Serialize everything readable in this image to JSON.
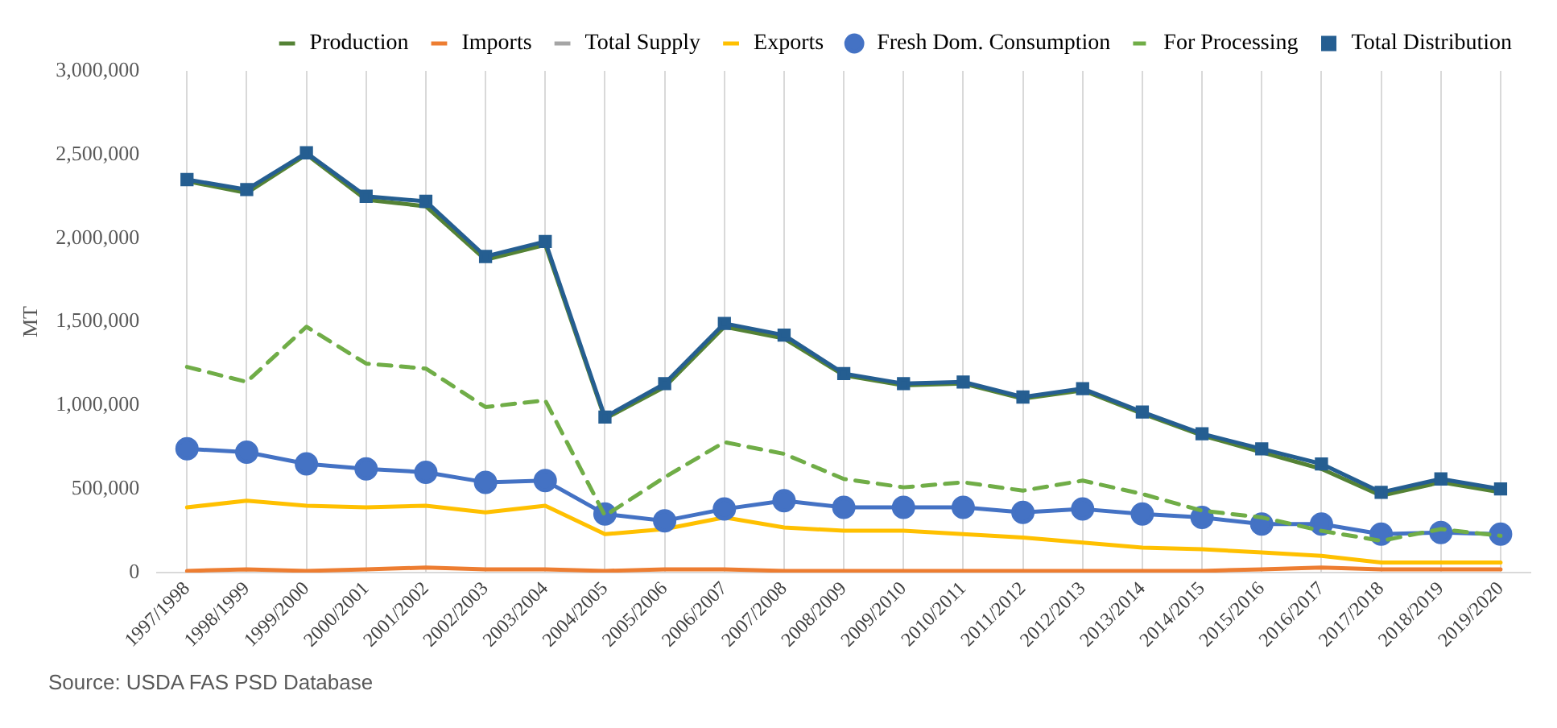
{
  "chart_data": {
    "type": "line",
    "ylabel": "MT",
    "annotations": [
      "Source: USDA FAS PSD Database"
    ],
    "categories": [
      "1997/1998",
      "1998/1999",
      "1999/2000",
      "2000/2001",
      "2001/2002",
      "2002/2003",
      "2003/2004",
      "2004/2005",
      "2005/2006",
      "2006/2007",
      "2007/2008",
      "2008/2009",
      "2009/2010",
      "2010/2011",
      "2011/2012",
      "2012/2013",
      "2013/2014",
      "2014/2015",
      "2015/2016",
      "2016/2017",
      "2017/2018",
      "2018/2019",
      "2019/2020"
    ],
    "ylim": [
      0,
      3000000
    ],
    "yticks": [
      0,
      {
        "value": 500000,
        "label": "500,000"
      },
      {
        "value": 1000000,
        "label": "1,000,000"
      },
      {
        "value": 1500000,
        "label": "1,500,000"
      },
      {
        "value": 2000000,
        "label": "2,000,000"
      },
      {
        "value": 2500000,
        "label": "2,500,000"
      },
      {
        "value": 3000000,
        "label": "3,000,000"
      }
    ],
    "grid": "x",
    "legend": "top right",
    "series": [
      {
        "name": "Production",
        "color": "#548235",
        "marker": "none",
        "line_style": "solid",
        "values": [
          2340000,
          2270000,
          2500000,
          2230000,
          2190000,
          1870000,
          1960000,
          920000,
          1110000,
          1470000,
          1400000,
          1180000,
          1120000,
          1130000,
          1040000,
          1090000,
          950000,
          820000,
          720000,
          620000,
          460000,
          540000,
          480000
        ]
      },
      {
        "name": "Imports",
        "color": "#ed7d31",
        "marker": "none",
        "line_style": "solid",
        "values": [
          10000,
          20000,
          10000,
          20000,
          30000,
          20000,
          20000,
          10000,
          20000,
          20000,
          10000,
          10000,
          10000,
          10000,
          10000,
          10000,
          10000,
          10000,
          20000,
          30000,
          20000,
          20000,
          20000
        ]
      },
      {
        "name": "Total Supply",
        "color": "#a5a5a5",
        "marker": "none",
        "line_style": "solid",
        "values": [
          null,
          null,
          null,
          null,
          null,
          null,
          null,
          null,
          null,
          null,
          null,
          null,
          null,
          null,
          null,
          null,
          null,
          null,
          null,
          null,
          null,
          null,
          null
        ]
      },
      {
        "name": "Exports",
        "color": "#ffc000",
        "marker": "none",
        "line_style": "solid",
        "values": [
          390000,
          430000,
          400000,
          390000,
          400000,
          360000,
          400000,
          230000,
          260000,
          330000,
          270000,
          250000,
          250000,
          230000,
          210000,
          180000,
          150000,
          140000,
          120000,
          100000,
          60000,
          60000,
          60000
        ]
      },
      {
        "name": "Fresh Dom. Consumption",
        "color": "#4472c4",
        "marker": "circle",
        "line_style": "solid",
        "values": [
          740000,
          720000,
          650000,
          620000,
          600000,
          540000,
          550000,
          350000,
          310000,
          380000,
          430000,
          390000,
          390000,
          390000,
          360000,
          380000,
          350000,
          330000,
          290000,
          290000,
          230000,
          240000,
          230000
        ]
      },
      {
        "name": "For Processing",
        "color": "#70ad47",
        "marker": "none",
        "line_style": "dashed",
        "values": [
          1230000,
          1140000,
          1470000,
          1250000,
          1220000,
          990000,
          1030000,
          340000,
          570000,
          780000,
          710000,
          560000,
          510000,
          540000,
          490000,
          550000,
          470000,
          370000,
          330000,
          250000,
          190000,
          260000,
          220000
        ]
      },
      {
        "name": "Total Distribution",
        "color": "#255e91",
        "marker": "square",
        "line_style": "solid",
        "values": [
          2350000,
          2290000,
          2510000,
          2250000,
          2220000,
          1890000,
          1980000,
          930000,
          1130000,
          1490000,
          1420000,
          1190000,
          1130000,
          1140000,
          1050000,
          1100000,
          960000,
          830000,
          740000,
          650000,
          480000,
          560000,
          500000
        ]
      }
    ]
  }
}
